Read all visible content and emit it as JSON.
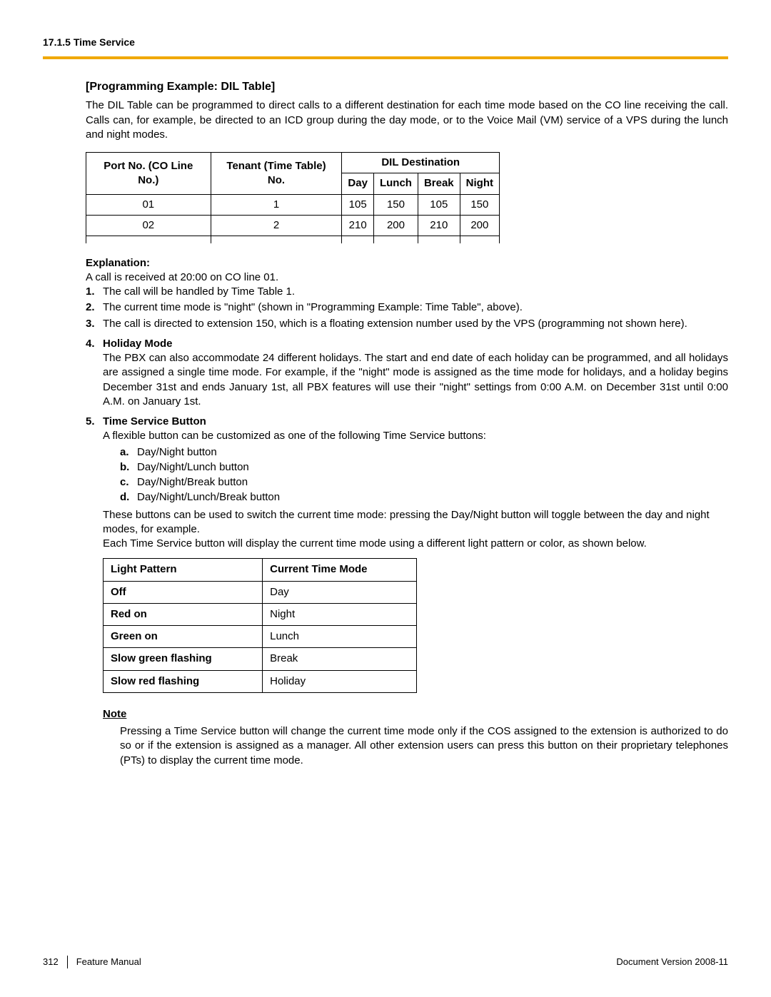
{
  "header": {
    "section": "17.1.5 Time Service"
  },
  "title": "[Programming Example: DIL Table]",
  "intro": "The DIL Table can be programmed to direct calls to a different destination for each time mode based on the CO line receiving the call. Calls can, for example, be directed to an ICD group during the day mode, or to the Voice Mail (VM) service of a VPS during the lunch and night modes.",
  "dil_table": {
    "col_port": "Port No. (CO Line No.)",
    "col_tenant": "Tenant (Time Table) No.",
    "col_dil": "DIL Destination",
    "sub_day": "Day",
    "sub_lunch": "Lunch",
    "sub_break": "Break",
    "sub_night": "Night",
    "rows": [
      {
        "port": "01",
        "tenant": "1",
        "day": "105",
        "lunch": "150",
        "break": "105",
        "night": "150"
      },
      {
        "port": "02",
        "tenant": "2",
        "day": "210",
        "lunch": "200",
        "break": "210",
        "night": "200"
      }
    ]
  },
  "explanation": {
    "label": "Explanation:",
    "lead": "A call is received at 20:00 on CO line 01.",
    "items": [
      "The call will be handled by Time Table 1.",
      "The current time mode is \"night\" (shown in \"Programming Example: Time Table\", above).",
      "The call is directed to extension 150, which is a floating extension number used by the VPS (programming not shown here)."
    ]
  },
  "holiday": {
    "num": "4.",
    "title": "Holiday Mode",
    "body": "The PBX can also accommodate 24 different holidays. The start and end date of each holiday can be programmed, and all holidays are assigned a single time mode. For example, if the \"night\" mode is assigned as the time mode for holidays, and a holiday begins December 31st and ends January 1st, all PBX features will use their \"night\" settings from 0:00 A.M. on December 31st until 0:00 A.M. on January 1st."
  },
  "tsbutton": {
    "num": "5.",
    "title": "Time Service Button",
    "lead": "A flexible button can be customized as one of the following Time Service buttons:",
    "options": [
      {
        "l": "a.",
        "t": "Day/Night button"
      },
      {
        "l": "b.",
        "t": "Day/Night/Lunch button"
      },
      {
        "l": "c.",
        "t": "Day/Night/Break button"
      },
      {
        "l": "d.",
        "t": "Day/Night/Lunch/Break button"
      }
    ],
    "after1": "These buttons can be used to switch the current time mode: pressing the Day/Night button will toggle between the day and night modes, for example.",
    "after2": "Each Time Service button will display the current time mode using a different light pattern or color, as shown below."
  },
  "light_table": {
    "h1": "Light Pattern",
    "h2": "Current Time Mode",
    "rows": [
      {
        "p": "Off",
        "m": "Day"
      },
      {
        "p": "Red on",
        "m": "Night"
      },
      {
        "p": "Green on",
        "m": "Lunch"
      },
      {
        "p": "Slow green flashing",
        "m": "Break"
      },
      {
        "p": "Slow red flashing",
        "m": "Holiday"
      }
    ]
  },
  "note": {
    "label": "Note",
    "body": "Pressing a Time Service button will change the current time mode only if the COS assigned to the extension is authorized to do so or if the extension is assigned as a manager. All other extension users can press this button on their proprietary telephones (PTs) to display the current time mode."
  },
  "footer": {
    "page": "312",
    "manual": "Feature Manual",
    "version": "Document Version  2008-11"
  }
}
